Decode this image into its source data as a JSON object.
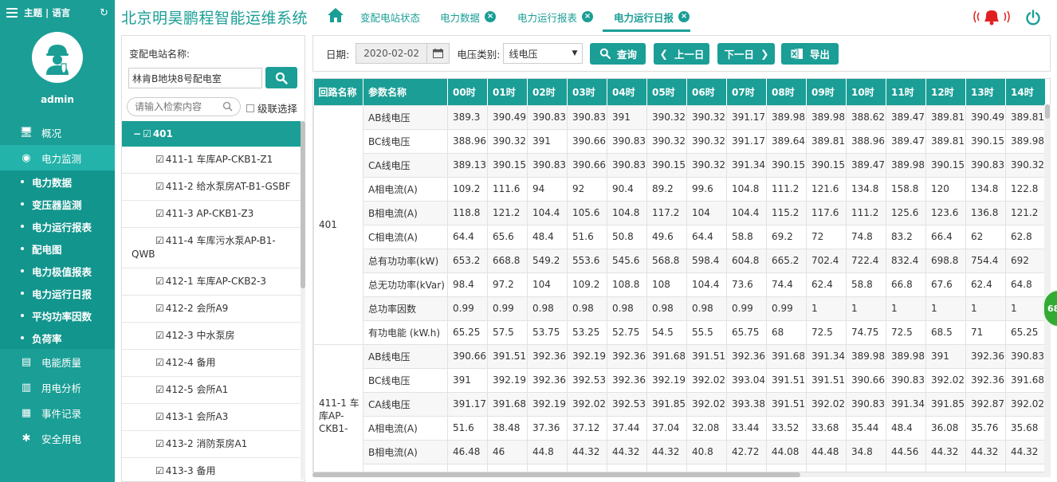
{
  "app_title": "北京明昊鹏程智能运维系统",
  "sidebar": {
    "top_label": "主题 | 语言",
    "username": "admin",
    "nav": [
      {
        "label": "概况",
        "icon": "monitor-icon"
      },
      {
        "label": "电力监测",
        "icon": "globe-icon"
      }
    ],
    "sub_items": [
      {
        "label": "电力数据"
      },
      {
        "label": "变压器监测"
      },
      {
        "label": "电力运行报表"
      },
      {
        "label": "配电图"
      },
      {
        "label": "电力极值报表"
      },
      {
        "label": "电力运行日报"
      },
      {
        "label": "平均功率因数"
      },
      {
        "label": "负荷率"
      }
    ],
    "nav_after": [
      {
        "label": "电能质量",
        "icon": "quality-icon"
      },
      {
        "label": "用电分析",
        "icon": "bar-chart-icon"
      },
      {
        "label": "事件记录",
        "icon": "record-icon"
      },
      {
        "label": "安全用电",
        "icon": "alarm-light-icon"
      }
    ]
  },
  "tabs": [
    {
      "label": "变配电站状态"
    },
    {
      "label": "电力数据"
    },
    {
      "label": "电力运行报表"
    },
    {
      "label": "电力运行日报"
    }
  ],
  "left_panel": {
    "station_label": "变配电站名称:",
    "station_value": "林肯B地块8号配电室",
    "search_placeholder": "请输入检索内容",
    "cascade_label": "级联选择",
    "tree_root": "401",
    "tree_items": [
      "411-1 车库AP-CKB1-Z1",
      "411-2 给水泵房AT-B1-GSBF",
      "411-3 AP-CKB1-Z3",
      "411-4 车库污水泵AP-B1-QWB",
      "412-1 车库AP-CKB2-3",
      "412-2 会所A9",
      "412-3 中水泵房",
      "412-4 备用",
      "412-5 会所A1",
      "413-1 会所A3",
      "413-2 消防泵房A1",
      "413-3 备用"
    ]
  },
  "toolbar": {
    "date_label": "日期:",
    "date_value": "2020-02-02",
    "voltage_label": "电压类别:",
    "voltage_value": "线电压",
    "query_label": "查询",
    "prev_label": "上一日",
    "next_label": "下一日",
    "export_label": "导出"
  },
  "table": {
    "headers": [
      "回路名称",
      "参数名称",
      "00时",
      "01时",
      "02时",
      "03时",
      "04时",
      "05时",
      "06时",
      "07时",
      "08时",
      "09时",
      "10时",
      "11时",
      "12时",
      "13时",
      "14时"
    ],
    "groups": [
      {
        "circuit": "401",
        "rows": [
          {
            "param": "AB线电压",
            "values": [
              "389.3",
              "390.49",
              "390.83",
              "390.83",
              "391",
              "390.32",
              "390.32",
              "391.17",
              "389.98",
              "389.98",
              "388.62",
              "389.47",
              "389.81",
              "390.49",
              "389.81"
            ]
          },
          {
            "param": "BC线电压",
            "values": [
              "388.96",
              "390.32",
              "391",
              "390.66",
              "390.83",
              "390.32",
              "390.32",
              "391.17",
              "389.64",
              "389.81",
              "388.96",
              "389.47",
              "389.81",
              "390.15",
              "389.98"
            ]
          },
          {
            "param": "CA线电压",
            "values": [
              "389.13",
              "390.15",
              "390.83",
              "390.66",
              "390.83",
              "390.15",
              "390.32",
              "391.34",
              "390.15",
              "390.15",
              "389.47",
              "389.98",
              "390.15",
              "390.83",
              "390.32"
            ]
          },
          {
            "param": "A相电流(A)",
            "values": [
              "109.2",
              "111.6",
              "94",
              "92",
              "90.4",
              "89.2",
              "99.6",
              "104.8",
              "111.2",
              "121.6",
              "134.8",
              "158.8",
              "120",
              "134.8",
              "122.8"
            ]
          },
          {
            "param": "B相电流(A)",
            "values": [
              "118.8",
              "121.2",
              "104.4",
              "105.6",
              "104.8",
              "117.2",
              "104",
              "104.4",
              "115.2",
              "117.6",
              "111.2",
              "125.6",
              "123.6",
              "136.8",
              "121.2"
            ]
          },
          {
            "param": "C相电流(A)",
            "values": [
              "64.4",
              "65.6",
              "48.4",
              "51.6",
              "50.8",
              "49.6",
              "64.4",
              "58.8",
              "69.2",
              "72",
              "74.8",
              "83.2",
              "66.4",
              "62",
              "62.8"
            ]
          },
          {
            "param": "总有功功率(kW)",
            "values": [
              "653.2",
              "668.8",
              "549.2",
              "553.6",
              "545.6",
              "568.8",
              "598.4",
              "604.8",
              "665.2",
              "702.4",
              "722.4",
              "832.4",
              "698.8",
              "754.4",
              "692"
            ]
          },
          {
            "param": "总无功功率(kVar)",
            "values": [
              "98.4",
              "97.2",
              "104",
              "109.2",
              "108.8",
              "108",
              "104.4",
              "73.6",
              "74.4",
              "62.4",
              "58.8",
              "66.8",
              "67.6",
              "62.4",
              "64.8"
            ]
          },
          {
            "param": "总功率因数",
            "values": [
              "0.99",
              "0.99",
              "0.98",
              "0.98",
              "0.98",
              "0.98",
              "0.98",
              "0.99",
              "0.99",
              "1",
              "1",
              "1",
              "1",
              "1",
              "1"
            ]
          },
          {
            "param": "有功电能 (kW.h)",
            "values": [
              "65.25",
              "57.5",
              "53.75",
              "53.25",
              "52.75",
              "54.5",
              "55.5",
              "65.75",
              "68",
              "72.5",
              "74.75",
              "72.5",
              "68.5",
              "71",
              "65.25"
            ]
          }
        ]
      },
      {
        "circuit": "411-1 车库AP-CKB1-",
        "rows": [
          {
            "param": "AB线电压",
            "values": [
              "390.66",
              "391.51",
              "392.36",
              "392.19",
              "392.36",
              "391.68",
              "391.51",
              "392.36",
              "391.68",
              "391.34",
              "389.98",
              "389.98",
              "391",
              "392.36",
              "390.83"
            ]
          },
          {
            "param": "BC线电压",
            "values": [
              "391",
              "392.19",
              "392.36",
              "392.53",
              "392.36",
              "392.19",
              "392.02",
              "393.04",
              "391.51",
              "391.51",
              "390.66",
              "390.83",
              "392.02",
              "392.36",
              "391.68"
            ]
          },
          {
            "param": "CA线电压",
            "values": [
              "391.17",
              "391.68",
              "392.19",
              "392.02",
              "392.53",
              "391.85",
              "392.02",
              "393.38",
              "391.51",
              "392.02",
              "390.83",
              "391.34",
              "391.85",
              "392.87",
              "392.02"
            ]
          },
          {
            "param": "A相电流(A)",
            "values": [
              "51.6",
              "38.48",
              "37.36",
              "37.12",
              "37.44",
              "37.04",
              "32.08",
              "33.44",
              "33.52",
              "33.68",
              "35.44",
              "48.4",
              "36.08",
              "35.76",
              "35.68"
            ]
          },
          {
            "param": "B相电流(A)",
            "values": [
              "46.48",
              "46",
              "44.8",
              "44.32",
              "44.32",
              "44.32",
              "40.8",
              "42.72",
              "44.08",
              "44.48",
              "34.8",
              "44.56",
              "44.32",
              "44.32",
              "44.32"
            ]
          },
          {
            "param": "",
            "values": [
              "",
              "",
              "",
              "",
              "",
              "",
              "",
              "",
              "",
              "",
              "",
              "",
              "",
              "",
              ""
            ]
          }
        ]
      }
    ]
  },
  "float_bubble": "68",
  "colors": {
    "primary": "#1a9e96",
    "alarm": "#e02020"
  }
}
